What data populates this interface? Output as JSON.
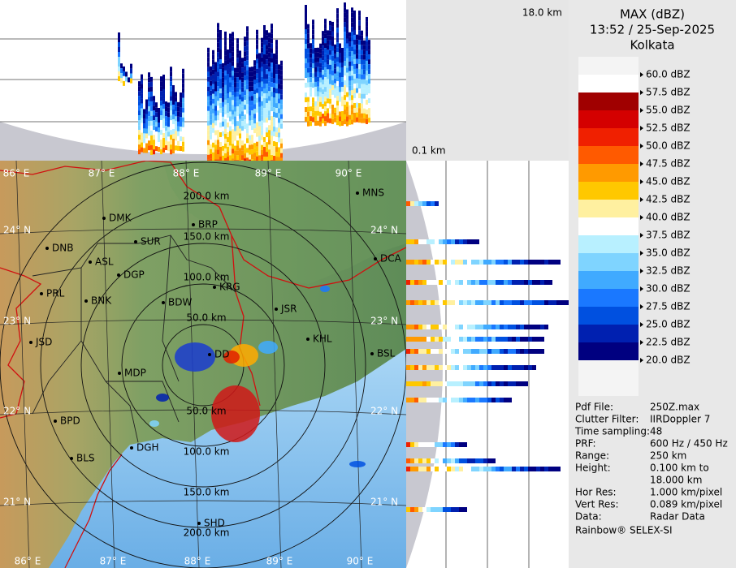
{
  "header": {
    "title": "MAX (dBZ)",
    "time": "13:52 / 25-Sep-2025",
    "location": "Kolkata"
  },
  "panels": {
    "top_height": "18.0 km",
    "bottom_height": "0.1 km"
  },
  "legend": {
    "labels": [
      "60.0 dBZ",
      "57.5 dBZ",
      "55.0 dBZ",
      "52.5 dBZ",
      "50.0 dBZ",
      "47.5 dBZ",
      "45.0 dBZ",
      "42.5 dBZ",
      "40.0 dBZ",
      "37.5 dBZ",
      "35.0 dBZ",
      "32.5 dBZ",
      "30.0 dBZ",
      "27.5 dBZ",
      "25.0 dBZ",
      "22.5 dBZ",
      "20.0 dBZ"
    ],
    "colors": [
      "#ffffff",
      "#a00000",
      "#d40000",
      "#f02000",
      "#ff5a00",
      "#ff9a00",
      "#ffc800",
      "#fff0a0",
      "#ffffff",
      "#b8f0ff",
      "#7fd4ff",
      "#40aaff",
      "#1a78ff",
      "#0050e0",
      "#0020b0",
      "#000080"
    ]
  },
  "info": [
    {
      "label": "Pdf File:",
      "values": [
        "250Z.max"
      ]
    },
    {
      "label": "Clutter Filter:",
      "values": [
        "IIRDoppler 7"
      ]
    },
    {
      "label": "Time sampling:48"
    },
    {
      "label": "PRF:",
      "values": [
        "600 Hz / 450 Hz"
      ]
    },
    {
      "label": "Range:",
      "values": [
        "250 km"
      ]
    },
    {
      "label": "Height:",
      "values": [
        "0.100 km to",
        "18.000 km"
      ]
    },
    {
      "label": "Hor Res:",
      "values": [
        "1.000 km/pixel"
      ]
    },
    {
      "label": "Vert Res:",
      "values": [
        "0.089 km/pixel"
      ]
    },
    {
      "label": "Data:",
      "values": [
        "Radar Data"
      ]
    }
  ],
  "footer": "Rainbow® SELEX-SI",
  "map": {
    "lon_labels_top": [
      "86° E",
      "87° E",
      "88° E",
      "89° E",
      "90° E"
    ],
    "lon_labels_bottom": [
      "86° E",
      "87° E",
      "88° E",
      "89° E",
      "90° E"
    ],
    "lat_labels_left": [
      "24° N",
      "23° N",
      "22° N",
      "21° N"
    ],
    "lat_labels_right": [
      "24° N",
      "23° N",
      "22° N",
      "21° N"
    ],
    "ring_labels_upper": [
      "50.0 km",
      "100.0 km",
      "150.0 km",
      "200.0 km"
    ],
    "ring_labels_lower": [
      "50.0 km",
      "100.0 km",
      "150.0 km",
      "200.0 km"
    ],
    "stations": [
      "MNS",
      "DMK",
      "BRP",
      "DNB",
      "SUR",
      "ASL",
      "DGP",
      "DCA",
      "KRG",
      "PRL",
      "BNK",
      "BDW",
      "JSR",
      "KHL",
      "JSD",
      "BSL",
      "DD",
      "MDP",
      "BPD",
      "DGH",
      "BLS",
      "SHD"
    ]
  }
}
